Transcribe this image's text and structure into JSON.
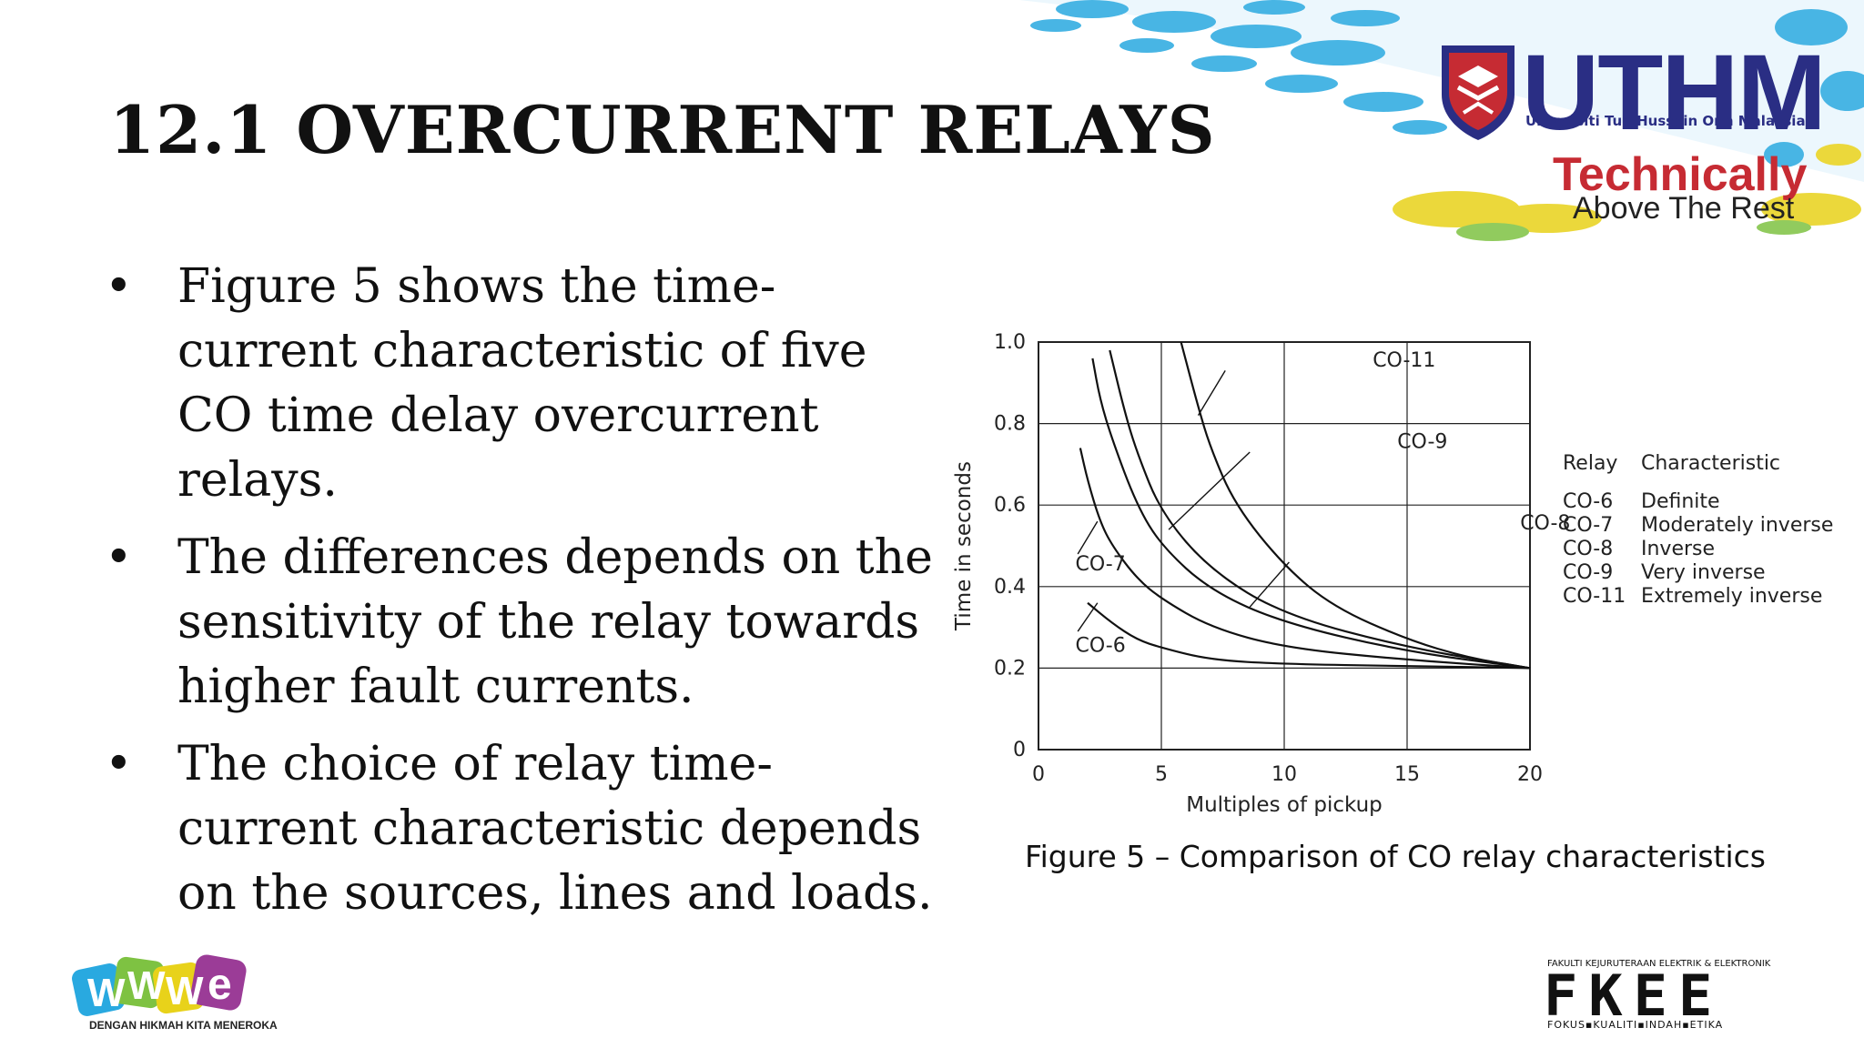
{
  "slide": {
    "title": "12.1 OVERCURRENT RELAYS",
    "bullets": [
      "Figure 5 shows the time-current characteristic of five CO time delay overcurrent relays.",
      "The differences depends on the sensitivity of the relay towards higher fault currents.",
      "The choice of relay time-current characteristic depends on the sources, lines and loads."
    ],
    "caption": "Figure 5 – Comparison of CO relay characteristics"
  },
  "logos": {
    "uthm_name": "UTHM",
    "uthm_full": "Universiti Tun Hussein Onn Malaysia",
    "tagline_1": "Technically",
    "tagline_2": "Above The Rest",
    "fkee_top": "FAKULTI KEJURUTERAAN ELEKTRIK & ELEKTRONIK",
    "fkee_name": "FKEE",
    "fkee_bottom": "FOKUS▪KUALITI▪INDAH▪ETIKA",
    "www_tag": "DENGAN HIKMAH KITA MENEROKA"
  },
  "colors": {
    "uthm_blue": "#2a2e84",
    "uthm_red": "#c62b33",
    "wave_cyan": "#29a9e0",
    "wave_yellow": "#e8d21a"
  },
  "chart_data": {
    "type": "line",
    "xlabel": "Multiples of pickup",
    "ylabel": "Time in seconds",
    "xlim": [
      0,
      20
    ],
    "ylim": [
      0,
      1.0
    ],
    "xticks": [
      0,
      5,
      10,
      15,
      20
    ],
    "yticks": [
      0,
      0.2,
      0.4,
      0.6,
      0.8,
      1.0
    ],
    "ytick_labels": [
      "0",
      "0.2",
      "0.4",
      "0.6",
      "0.8",
      "1.0"
    ],
    "grid": true,
    "series": [
      {
        "name": "CO-6",
        "x": [
          2,
          3,
          4,
          5,
          7,
          10,
          15,
          20
        ],
        "y": [
          0.36,
          0.31,
          0.27,
          0.25,
          0.22,
          0.21,
          0.205,
          0.2
        ]
      },
      {
        "name": "CO-7",
        "x": [
          1.7,
          2,
          2.5,
          3,
          4,
          5,
          7,
          10,
          15,
          20
        ],
        "y": [
          0.74,
          0.66,
          0.56,
          0.5,
          0.42,
          0.37,
          0.3,
          0.25,
          0.22,
          0.2
        ]
      },
      {
        "name": "CO-8",
        "x": [
          2.2,
          2.5,
          3,
          4,
          5,
          7,
          10,
          15,
          20
        ],
        "y": [
          0.96,
          0.86,
          0.76,
          0.6,
          0.5,
          0.39,
          0.31,
          0.24,
          0.2
        ]
      },
      {
        "name": "CO-9",
        "x": [
          2.9,
          3.5,
          4,
          5,
          7,
          10,
          15,
          20
        ],
        "y": [
          0.98,
          0.83,
          0.73,
          0.58,
          0.44,
          0.33,
          0.25,
          0.2
        ]
      },
      {
        "name": "CO-11",
        "x": [
          5.8,
          6.5,
          7,
          8,
          10,
          12,
          15,
          17.5,
          20
        ],
        "y": [
          1.0,
          0.84,
          0.74,
          0.6,
          0.45,
          0.35,
          0.27,
          0.225,
          0.2
        ]
      }
    ],
    "legend": {
      "header": [
        "Relay",
        "Characteristic"
      ],
      "rows": [
        [
          "CO-6",
          "Definite"
        ],
        [
          "CO-7",
          "Moderately inverse"
        ],
        [
          "CO-8",
          "Inverse"
        ],
        [
          "CO-9",
          "Very inverse"
        ],
        [
          "CO-11",
          "Extremely inverse"
        ]
      ],
      "placement": "right"
    }
  }
}
